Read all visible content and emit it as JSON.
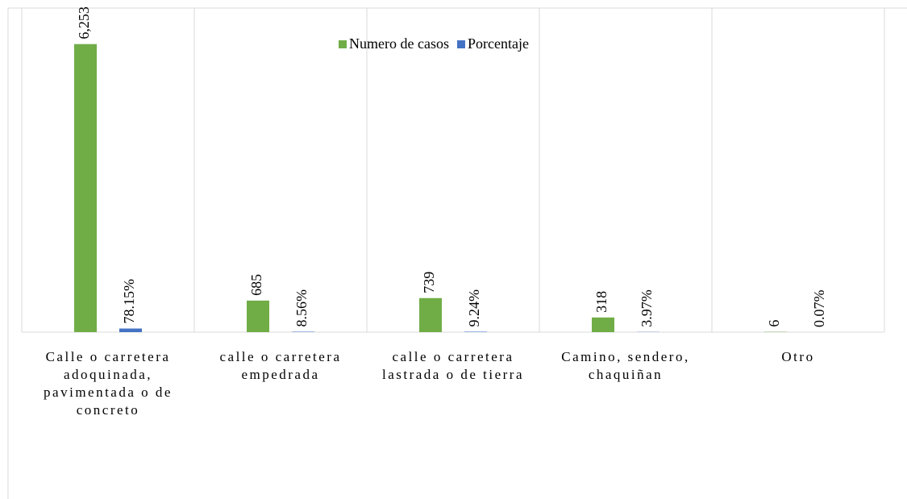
{
  "chart_data": {
    "type": "bar",
    "categories": [
      "Calle o carretera adoquinada, pavimentada o de concreto",
      "calle o carretera empedrada",
      "calle o carretera lastrada o de tierra",
      "Camino, sendero, chaquiñan",
      "Otro"
    ],
    "series": [
      {
        "name": "Numero de casos",
        "color": "#70ad47",
        "values": [
          6253,
          685,
          739,
          318,
          6
        ],
        "value_labels": [
          "6,253",
          "685",
          "739",
          "318",
          "6"
        ]
      },
      {
        "name": "Porcentaje",
        "color": "#4472c4",
        "values": [
          78.15,
          8.56,
          9.24,
          3.97,
          0.07
        ],
        "value_labels": [
          "78.15%",
          "8.56%",
          "9.24%",
          "3.97%",
          "0.07%"
        ]
      }
    ],
    "ylim": [
      0,
      7000
    ],
    "legend": "top"
  }
}
